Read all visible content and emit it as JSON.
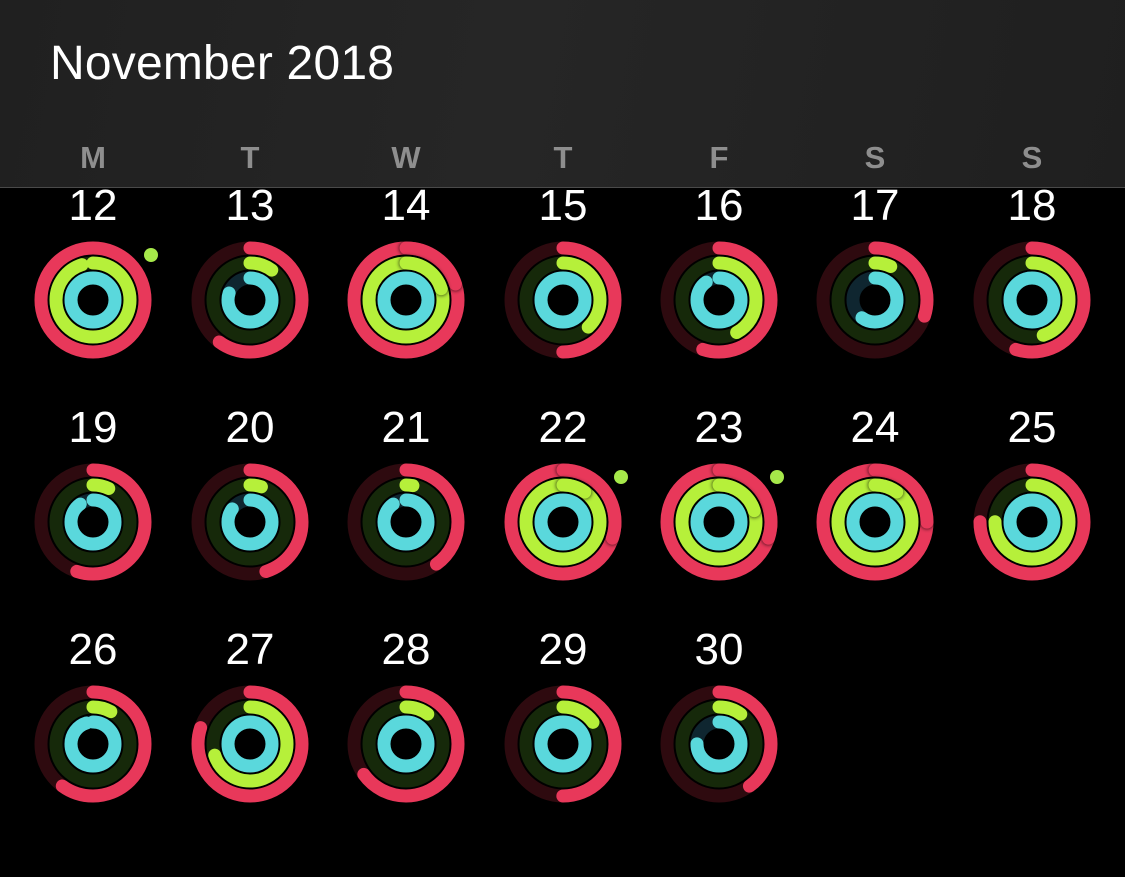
{
  "header": {
    "title": "November 2018"
  },
  "weekdays": [
    "M",
    "T",
    "W",
    "T",
    "F",
    "S",
    "S"
  ],
  "colors": {
    "move": "#e8385a",
    "move_track": "#2e0a0f",
    "exercise": "#b6f03a",
    "exercise_track": "#16290a",
    "stand": "#5ad8dc",
    "stand_track": "#0f2630",
    "award_dot": "#a6e84a"
  },
  "weeks": [
    [
      {
        "day": "12",
        "move": 1.0,
        "exercise": 0.95,
        "stand": 1.0,
        "award": true
      },
      {
        "day": "13",
        "move": 0.6,
        "exercise": 0.1,
        "stand": 0.8,
        "award": false
      },
      {
        "day": "14",
        "move": 1.2,
        "exercise": 1.2,
        "stand": 1.0,
        "award": false
      },
      {
        "day": "15",
        "move": 0.5,
        "exercise": 0.38,
        "stand": 1.0,
        "award": false
      },
      {
        "day": "16",
        "move": 0.55,
        "exercise": 0.42,
        "stand": 0.9,
        "award": false
      },
      {
        "day": "17",
        "move": 0.3,
        "exercise": 0.07,
        "stand": 0.6,
        "award": false
      },
      {
        "day": "18",
        "move": 0.55,
        "exercise": 0.45,
        "stand": 1.0,
        "award": false
      }
    ],
    [
      {
        "day": "19",
        "move": 0.55,
        "exercise": 0.07,
        "stand": 0.9,
        "award": false
      },
      {
        "day": "20",
        "move": 0.45,
        "exercise": 0.05,
        "stand": 0.85,
        "award": false
      },
      {
        "day": "21",
        "move": 0.4,
        "exercise": 0.03,
        "stand": 0.9,
        "award": false
      },
      {
        "day": "22",
        "move": 1.3,
        "exercise": 1.1,
        "stand": 1.0,
        "award": true
      },
      {
        "day": "23",
        "move": 1.3,
        "exercise": 1.2,
        "stand": 1.0,
        "award": true
      },
      {
        "day": "24",
        "move": 1.25,
        "exercise": 1.1,
        "stand": 1.0,
        "award": false
      },
      {
        "day": "25",
        "move": 0.75,
        "exercise": 0.75,
        "stand": 1.0,
        "award": false
      }
    ],
    [
      {
        "day": "26",
        "move": 0.6,
        "exercise": 0.08,
        "stand": 0.95,
        "award": false
      },
      {
        "day": "27",
        "move": 0.8,
        "exercise": 0.7,
        "stand": 1.0,
        "award": false
      },
      {
        "day": "28",
        "move": 0.65,
        "exercise": 0.1,
        "stand": 1.0,
        "award": false
      },
      {
        "day": "29",
        "move": 0.5,
        "exercise": 0.15,
        "stand": 1.0,
        "award": false
      },
      {
        "day": "30",
        "move": 0.4,
        "exercise": 0.1,
        "stand": 0.75,
        "award": false
      }
    ]
  ]
}
